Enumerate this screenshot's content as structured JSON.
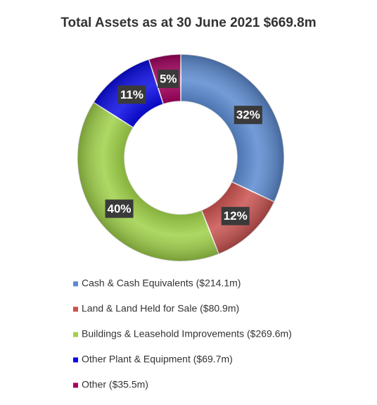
{
  "chart_data": {
    "type": "donut",
    "title": "Total Assets as at 30 June 2021 $669.8m",
    "categories": [
      "Cash & Cash Equivalents ($214.1m)",
      "Land & Land Held for Sale ($80.9m)",
      "Buildings & Leasehold Improvements ($269.6m)",
      "Other Plant & Equipment ($69.7m)",
      "Other ($35.5m)"
    ],
    "values": [
      32,
      12,
      40,
      11,
      5
    ],
    "value_labels": [
      "32%",
      "12%",
      "40%",
      "11%",
      "5%"
    ],
    "colors": [
      "#5b8ad0",
      "#c9524f",
      "#9fd148",
      "#0a0ae6",
      "#a3005e"
    ],
    "legend": "bottom"
  }
}
